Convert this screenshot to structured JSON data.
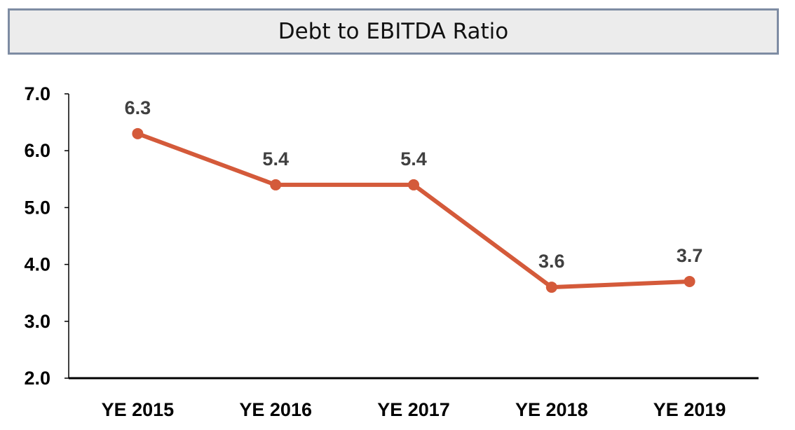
{
  "chart_data": {
    "type": "line",
    "title": "Debt to EBITDA Ratio",
    "categories": [
      "YE 2015",
      "YE 2016",
      "YE 2017",
      "YE 2018",
      "YE 2019"
    ],
    "series": [
      {
        "values": [
          6.3,
          5.4,
          5.4,
          3.6,
          3.7
        ]
      }
    ],
    "data_labels": [
      "6.3",
      "5.4",
      "5.4",
      "3.6",
      "3.7"
    ],
    "ylim": [
      2.0,
      7.0
    ],
    "yticks": [
      "2.0",
      "3.0",
      "4.0",
      "5.0",
      "6.0",
      "7.0"
    ],
    "xlabel": "",
    "ylabel": "",
    "grid": false,
    "legend": "none",
    "colors": {
      "line": "#d45a3a",
      "label": "#404040",
      "axis": "#000000"
    }
  }
}
